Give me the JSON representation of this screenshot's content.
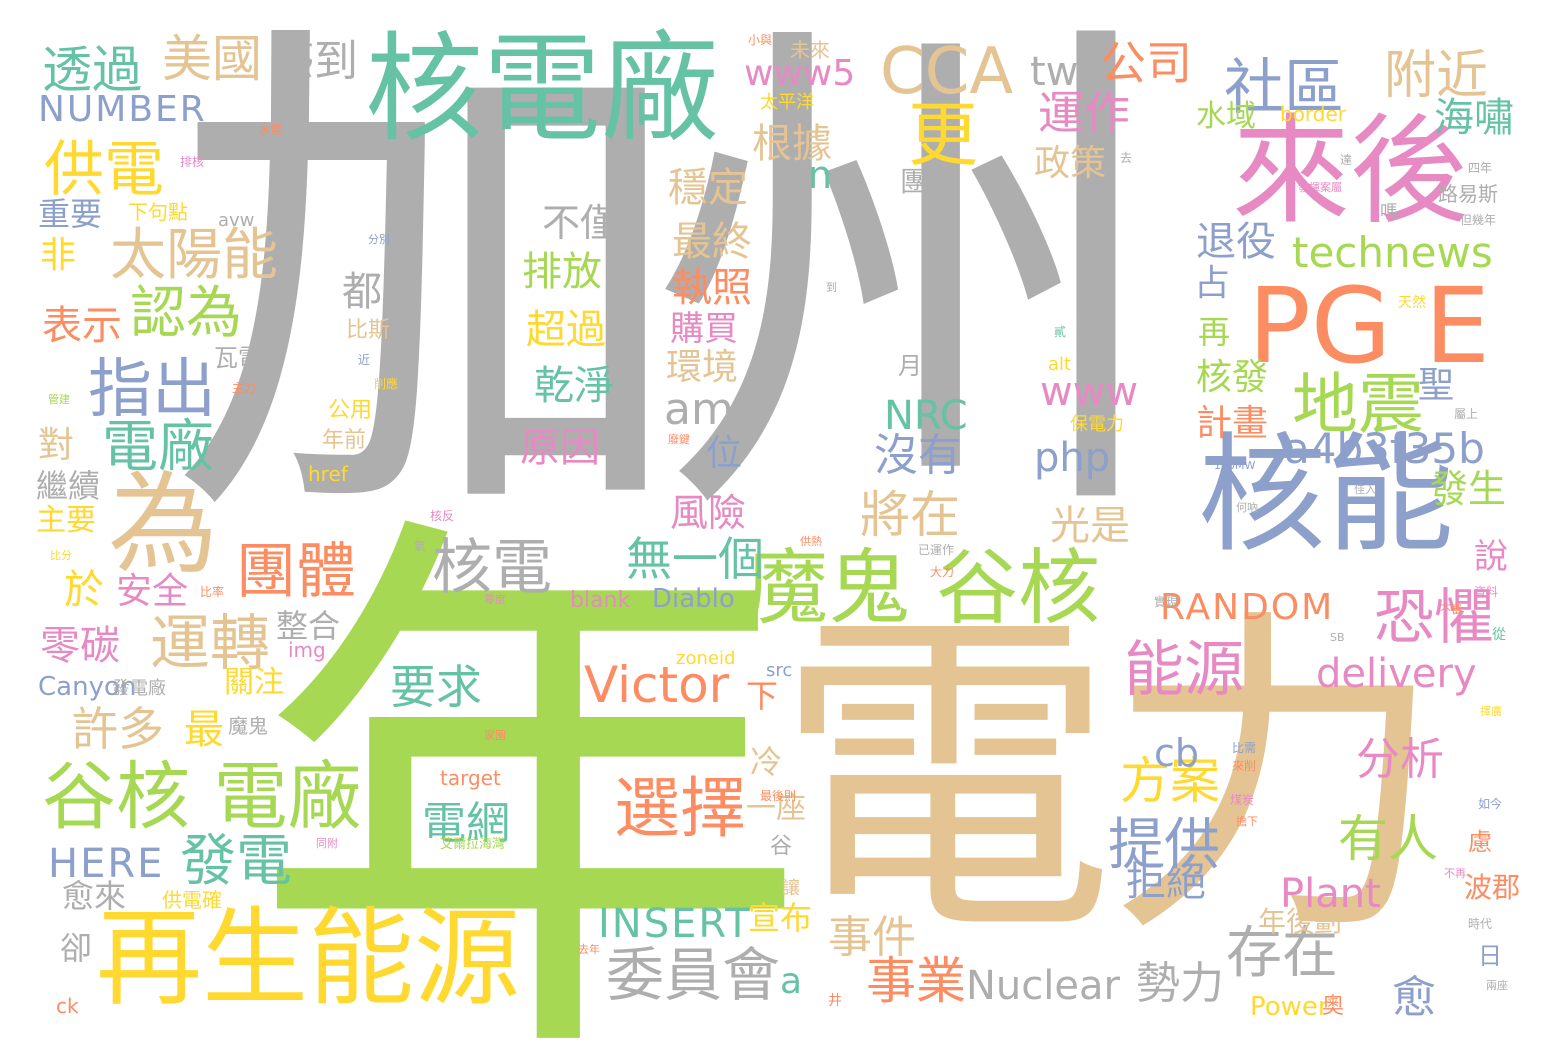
{
  "palette": {
    "gray": "#aeaeae",
    "green": "#a6d854",
    "tan": "#e5c494",
    "teal": "#66c2a5",
    "blue": "#8da0cb",
    "orange": "#fc8d62",
    "pink": "#e78ac3",
    "yellow": "#ffd92f"
  },
  "words": [
    {
      "text": "加州",
      "color": "gray"
    },
    {
      "text": "年",
      "color": "green"
    },
    {
      "text": "電力",
      "color": "tan"
    },
    {
      "text": "核電廠",
      "color": "teal"
    },
    {
      "text": "來後",
      "color": "pink"
    },
    {
      "text": "PG E",
      "color": "orange"
    },
    {
      "text": "核能",
      "color": "blue"
    },
    {
      "text": "再生能源",
      "color": "yellow"
    },
    {
      "text": "魔鬼 谷核",
      "color": "green"
    },
    {
      "text": "谷核 電廠",
      "color": "green"
    },
    {
      "text": "為",
      "color": "tan"
    },
    {
      "text": "CCA",
      "color": "tan"
    },
    {
      "text": "社區",
      "color": "blue"
    },
    {
      "text": "地震",
      "color": "green"
    },
    {
      "text": "核電",
      "color": "gray"
    },
    {
      "text": "選擇",
      "color": "orange"
    },
    {
      "text": "Victor",
      "color": "orange"
    },
    {
      "text": "透過",
      "color": "teal"
    },
    {
      "text": "美國",
      "color": "tan"
    },
    {
      "text": "感到",
      "color": "gray"
    },
    {
      "text": "tw",
      "color": "gray"
    },
    {
      "text": "公司",
      "color": "orange"
    },
    {
      "text": "附近",
      "color": "tan"
    },
    {
      "text": "www5",
      "color": "pink"
    },
    {
      "text": "NUMBER",
      "color": "blue"
    },
    {
      "text": "供電",
      "color": "yellow"
    },
    {
      "text": "更",
      "color": "yellow"
    },
    {
      "text": "運作",
      "color": "pink"
    },
    {
      "text": "海嘯",
      "color": "teal"
    },
    {
      "text": "太陽能",
      "color": "tan"
    },
    {
      "text": "認為",
      "color": "green"
    },
    {
      "text": "指出",
      "color": "blue"
    },
    {
      "text": "電廠",
      "color": "teal"
    },
    {
      "text": "amp",
      "color": "gray"
    },
    {
      "text": "technews",
      "color": "green"
    },
    {
      "text": "a4b3f35b",
      "color": "blue"
    },
    {
      "text": "團體",
      "color": "orange"
    },
    {
      "text": "運轉",
      "color": "tan"
    },
    {
      "text": "能源",
      "color": "pink"
    },
    {
      "text": "恐懼",
      "color": "pink"
    },
    {
      "text": "RANDOM",
      "color": "orange"
    },
    {
      "text": "delivery",
      "color": "pink"
    },
    {
      "text": "Nuclear",
      "color": "gray"
    },
    {
      "text": "勢力",
      "color": "gray"
    },
    {
      "text": "存在",
      "color": "gray"
    },
    {
      "text": "委員會",
      "color": "gray"
    },
    {
      "text": "事業",
      "color": "orange"
    },
    {
      "text": "提供",
      "color": "blue"
    },
    {
      "text": "Plant",
      "color": "pink"
    },
    {
      "text": "INSERT",
      "color": "teal"
    },
    {
      "text": "方案",
      "color": "yellow"
    },
    {
      "text": "分析",
      "color": "pink"
    },
    {
      "text": "有人",
      "color": "green"
    },
    {
      "text": "HERE",
      "color": "blue"
    },
    {
      "text": "發電",
      "color": "teal"
    },
    {
      "text": "許多",
      "color": "tan"
    },
    {
      "text": "零碳",
      "color": "pink"
    },
    {
      "text": "要求",
      "color": "teal"
    },
    {
      "text": "電網",
      "color": "teal"
    },
    {
      "text": "事件",
      "color": "tan"
    },
    {
      "text": "將在",
      "color": "tan"
    },
    {
      "text": "沒有",
      "color": "blue"
    },
    {
      "text": "光是",
      "color": "tan"
    },
    {
      "text": "php",
      "color": "blue"
    },
    {
      "text": "www",
      "color": "pink"
    },
    {
      "text": "NRC",
      "color": "teal"
    },
    {
      "text": "無一個",
      "color": "teal"
    },
    {
      "text": "cb",
      "color": "blue"
    },
    {
      "text": "拒絕",
      "color": "blue"
    },
    {
      "text": "a",
      "color": "teal"
    },
    {
      "text": "愈",
      "color": "blue"
    },
    {
      "text": "宣布",
      "color": "yellow"
    },
    {
      "text": "Power",
      "color": "yellow"
    },
    {
      "text": "表示",
      "color": "orange"
    },
    {
      "text": "非",
      "color": "yellow"
    },
    {
      "text": "重要",
      "color": "blue"
    },
    {
      "text": "對",
      "color": "tan"
    },
    {
      "text": "繼續",
      "color": "gray"
    },
    {
      "text": "主要",
      "color": "yellow"
    },
    {
      "text": "於",
      "color": "yellow"
    },
    {
      "text": "安全",
      "color": "pink"
    },
    {
      "text": "Canyon",
      "color": "blue"
    },
    {
      "text": "愈來",
      "color": "gray"
    },
    {
      "text": "卻",
      "color": "gray"
    },
    {
      "text": "最",
      "color": "yellow"
    },
    {
      "text": "關注",
      "color": "yellow"
    },
    {
      "text": "整合",
      "color": "gray"
    },
    {
      "text": "根據",
      "color": "tan"
    },
    {
      "text": "穩定",
      "color": "tan"
    },
    {
      "text": "最終",
      "color": "tan"
    },
    {
      "text": "執照",
      "color": "orange"
    },
    {
      "text": "購買",
      "color": "pink"
    },
    {
      "text": "環境",
      "color": "tan"
    },
    {
      "text": "風險",
      "color": "pink"
    },
    {
      "text": "政策",
      "color": "tan"
    },
    {
      "text": "團隊",
      "color": "gray"
    },
    {
      "text": "不僅",
      "color": "gray"
    },
    {
      "text": "排放",
      "color": "green"
    },
    {
      "text": "超過",
      "color": "yellow"
    },
    {
      "text": "乾淨",
      "color": "teal"
    },
    {
      "text": "原因",
      "color": "pink"
    },
    {
      "text": "都",
      "color": "gray"
    },
    {
      "text": "n",
      "color": "teal"
    },
    {
      "text": "退役",
      "color": "blue"
    },
    {
      "text": "占",
      "color": "blue"
    },
    {
      "text": "再",
      "color": "green"
    },
    {
      "text": "核發",
      "color": "green"
    },
    {
      "text": "聖",
      "color": "blue"
    },
    {
      "text": "計畫",
      "color": "orange"
    },
    {
      "text": "發生",
      "color": "green"
    },
    {
      "text": "說",
      "color": "pink"
    },
    {
      "text": "水域",
      "color": "green"
    },
    {
      "text": "位",
      "color": "blue"
    },
    {
      "text": "下",
      "color": "orange"
    },
    {
      "text": "冷",
      "color": "tan"
    },
    {
      "text": "一座",
      "color": "tan"
    },
    {
      "text": "谷",
      "color": "gray"
    },
    {
      "text": "讓",
      "color": "tan"
    },
    {
      "text": "年後劃",
      "color": "tan"
    },
    {
      "text": "慮",
      "color": "orange"
    },
    {
      "text": "波郡",
      "color": "orange"
    },
    {
      "text": "日",
      "color": "blue"
    },
    {
      "text": "奧",
      "color": "orange"
    },
    {
      "text": "Diablo",
      "color": "blue"
    },
    {
      "text": "blank",
      "color": "pink"
    },
    {
      "text": "img",
      "color": "pink"
    },
    {
      "text": "zoneid",
      "color": "yellow"
    },
    {
      "text": "src",
      "color": "blue"
    },
    {
      "text": "target",
      "color": "orange"
    },
    {
      "text": "href",
      "color": "yellow"
    },
    {
      "text": "alt",
      "color": "yellow"
    },
    {
      "text": "border",
      "color": "yellow"
    },
    {
      "text": "avw",
      "color": "gray"
    },
    {
      "text": "ck",
      "color": "orange"
    },
    {
      "text": "會",
      "color": "gray"
    },
    {
      "text": "下句點",
      "color": "yellow"
    },
    {
      "text": "比斯",
      "color": "tan"
    },
    {
      "text": "瓦電",
      "color": "gray"
    },
    {
      "text": "年前",
      "color": "tan"
    },
    {
      "text": "公用",
      "color": "yellow"
    },
    {
      "text": "月",
      "color": "gray"
    },
    {
      "text": "保電力",
      "color": "yellow"
    },
    {
      "text": "未來",
      "color": "tan"
    },
    {
      "text": "太平洋",
      "color": "yellow"
    },
    {
      "text": "小與",
      "color": "orange"
    },
    {
      "text": "發電廠",
      "color": "gray"
    },
    {
      "text": "魔鬼",
      "color": "gray"
    },
    {
      "text": "供電確",
      "color": "yellow"
    },
    {
      "text": "路易斯",
      "color": "gray"
    },
    {
      "text": "嗎",
      "color": "gray"
    },
    {
      "text": "水電",
      "color": "orange"
    },
    {
      "text": "排核",
      "color": "pink"
    },
    {
      "text": "分別",
      "color": "blue"
    },
    {
      "text": "到",
      "color": "gray"
    },
    {
      "text": "天然",
      "color": "yellow"
    },
    {
      "text": "主力",
      "color": "orange"
    },
    {
      "text": "管建",
      "color": "green"
    },
    {
      "text": "近",
      "color": "blue"
    },
    {
      "text": "削應",
      "color": "yellow"
    },
    {
      "text": "四年",
      "color": "gray"
    },
    {
      "text": "但幾年",
      "color": "gray"
    },
    {
      "text": "發揮案屬",
      "color": "pink"
    },
    {
      "text": "達",
      "color": "gray"
    },
    {
      "text": "屬上",
      "color": "gray"
    },
    {
      "text": "160MW",
      "color": "blue"
    },
    {
      "text": "核反",
      "color": "pink"
    },
    {
      "text": "比分",
      "color": "yellow"
    },
    {
      "text": "比率",
      "color": "orange"
    },
    {
      "text": "零度",
      "color": "pink"
    },
    {
      "text": "家園",
      "color": "orange"
    },
    {
      "text": "已運作",
      "color": "gray"
    },
    {
      "text": "大力",
      "color": "orange"
    },
    {
      "text": "資料",
      "color": "pink"
    },
    {
      "text": "不審",
      "color": "orange"
    },
    {
      "text": "實現",
      "color": "gray"
    },
    {
      "text": "比需",
      "color": "blue"
    },
    {
      "text": "來削",
      "color": "orange"
    },
    {
      "text": "煤炭",
      "color": "pink"
    },
    {
      "text": "擔下",
      "color": "orange"
    },
    {
      "text": "最後則",
      "color": "orange"
    },
    {
      "text": "同附",
      "color": "pink"
    },
    {
      "text": "艾爾拉海灣",
      "color": "green"
    },
    {
      "text": "如今",
      "color": "blue"
    },
    {
      "text": "不再",
      "color": "pink"
    },
    {
      "text": "時代",
      "color": "gray"
    },
    {
      "text": "兩座",
      "color": "gray"
    },
    {
      "text": "從",
      "color": "teal"
    },
    {
      "text": "SB",
      "color": "gray"
    },
    {
      "text": "擇廣",
      "color": "yellow"
    },
    {
      "text": "去年",
      "color": "orange"
    },
    {
      "text": "井",
      "color": "orange"
    },
    {
      "text": "氣",
      "color": "gray"
    },
    {
      "text": "供熱",
      "color": "orange"
    },
    {
      "text": "廢鍵",
      "color": "orange"
    },
    {
      "text": "佳入",
      "color": "gray"
    },
    {
      "text": "何吶",
      "color": "gray"
    },
    {
      "text": "貳",
      "color": "teal"
    },
    {
      "text": "去",
      "color": "gray"
    }
  ]
}
